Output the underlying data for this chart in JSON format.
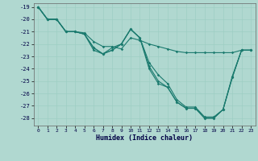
{
  "xlabel": "Humidex (Indice chaleur)",
  "xlim": [
    -0.5,
    23.5
  ],
  "ylim": [
    -28.6,
    -18.7
  ],
  "yticks": [
    -19,
    -20,
    -21,
    -22,
    -23,
    -24,
    -25,
    -26,
    -27,
    -28
  ],
  "xticks": [
    0,
    1,
    2,
    3,
    4,
    5,
    6,
    7,
    8,
    9,
    10,
    11,
    12,
    13,
    14,
    15,
    16,
    17,
    18,
    19,
    20,
    21,
    22,
    23
  ],
  "bg_color": "#b0d8d0",
  "line_color": "#1a7a6e",
  "grid_color": "#9ecec4",
  "line1_x": [
    0,
    1,
    2,
    3,
    4,
    5,
    6,
    7,
    8,
    9,
    10,
    11,
    12,
    13,
    14,
    15,
    16,
    17,
    18,
    19,
    20,
    21,
    22,
    23
  ],
  "line1_y": [
    -19.0,
    -20.0,
    -20.0,
    -21.0,
    -21.0,
    -21.1,
    -21.8,
    -22.2,
    -22.2,
    -22.4,
    -21.5,
    -21.7,
    -22.0,
    -22.2,
    -22.4,
    -22.6,
    -22.7,
    -22.7,
    -22.7,
    -22.7,
    -22.7,
    -22.7,
    -22.5,
    -22.5
  ],
  "line2_x": [
    0,
    1,
    2,
    3,
    4,
    5,
    6,
    7,
    8,
    9,
    10,
    11,
    12,
    13,
    14,
    15,
    16,
    17,
    18,
    19,
    20,
    21,
    22,
    23
  ],
  "line2_y": [
    -19.0,
    -20.0,
    -20.0,
    -21.0,
    -21.0,
    -21.2,
    -22.3,
    -22.8,
    -22.5,
    -22.0,
    -20.8,
    -21.5,
    -23.5,
    -24.5,
    -25.2,
    -26.5,
    -27.1,
    -27.1,
    -27.9,
    -27.9,
    -27.3,
    -24.6,
    -22.5,
    -22.5
  ],
  "line3_x": [
    0,
    1,
    2,
    3,
    4,
    5,
    6,
    7,
    8,
    9,
    10,
    11,
    12,
    13,
    14,
    15,
    16,
    17,
    18,
    19,
    20,
    21,
    22,
    23
  ],
  "line3_y": [
    -19.0,
    -20.0,
    -20.0,
    -21.0,
    -21.0,
    -21.2,
    -22.3,
    -22.8,
    -22.5,
    -22.0,
    -20.8,
    -21.5,
    -23.8,
    -25.0,
    -25.5,
    -26.7,
    -27.2,
    -27.2,
    -28.0,
    -28.0,
    -27.3,
    -24.7,
    -22.5,
    -22.5
  ],
  "line4_x": [
    0,
    1,
    2,
    3,
    4,
    5,
    6,
    7,
    8,
    9,
    10,
    11,
    12,
    13,
    14,
    15,
    16,
    17,
    18,
    19,
    20,
    21,
    22,
    23
  ],
  "line4_y": [
    -19.0,
    -20.0,
    -20.0,
    -21.0,
    -21.0,
    -21.2,
    -22.5,
    -22.8,
    -22.3,
    -22.0,
    -20.8,
    -21.5,
    -24.0,
    -25.2,
    -25.5,
    -26.7,
    -27.2,
    -27.2,
    -28.0,
    -28.0,
    -27.3,
    -24.7,
    -22.5,
    -22.5
  ]
}
